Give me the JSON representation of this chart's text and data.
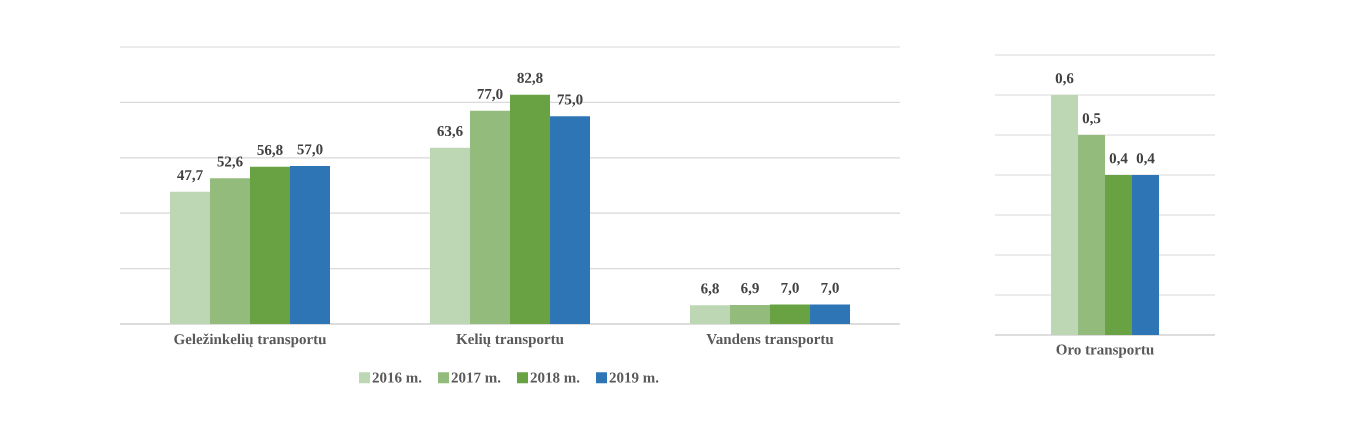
{
  "chart_data": [
    {
      "type": "bar",
      "categories": [
        "Geležinkelių transportu",
        "Kelių transportu",
        "Vandens transportu"
      ],
      "ylim": [
        0,
        100
      ],
      "yticks": [
        {
          "value": 0,
          "label": null
        },
        {
          "value": 20,
          "label": null
        },
        {
          "value": 40,
          "label": null
        },
        {
          "value": 60,
          "label": null
        },
        {
          "value": 80,
          "label": null
        },
        {
          "value": 100,
          "label": null
        }
      ],
      "grid": "y",
      "legend": "bottom",
      "tick_labels": "x",
      "series": [
        {
          "name": "2016 m.",
          "color": "#bdd7b4",
          "values": [
            47.7,
            63.6,
            6.8
          ],
          "value_labels": [
            "47,7",
            "63,6",
            "6,8"
          ]
        },
        {
          "name": "2017 m.",
          "color": "#92bb7c",
          "values": [
            52.6,
            77.0,
            6.9
          ],
          "value_labels": [
            "52,6",
            "77,0",
            "6,9"
          ]
        },
        {
          "name": "2018 m.",
          "color": "#68a242",
          "values": [
            56.8,
            82.8,
            7.0
          ],
          "value_labels": [
            "56,8",
            "82,8",
            "7,0"
          ]
        },
        {
          "name": "2019 m.",
          "color": "#2e75b6",
          "values": [
            57.0,
            75.0,
            7.0
          ],
          "value_labels": [
            "57,0",
            "75,0",
            "7,0"
          ]
        }
      ]
    },
    {
      "type": "bar",
      "categories": [
        "Oro transportu"
      ],
      "ylim": [
        0,
        0.7
      ],
      "yticks": [
        {
          "value": 0,
          "label": null
        },
        {
          "value": 0.1,
          "label": null
        },
        {
          "value": 0.2,
          "label": null
        },
        {
          "value": 0.3,
          "label": null
        },
        {
          "value": 0.4,
          "label": null
        },
        {
          "value": 0.5,
          "label": null
        },
        {
          "value": 0.6,
          "label": null
        },
        {
          "value": 0.7,
          "label": null
        }
      ],
      "grid": "y",
      "tick_labels": "x",
      "series": [
        {
          "color": "#bdd7b4",
          "values": [
            0.6
          ],
          "value_labels": [
            "0,6"
          ]
        },
        {
          "color": "#92bb7c",
          "values": [
            0.5
          ],
          "value_labels": [
            "0,5"
          ]
        },
        {
          "color": "#68a242",
          "values": [
            0.4
          ],
          "value_labels": [
            "0,4"
          ]
        },
        {
          "color": "#2e75b6",
          "values": [
            0.4
          ],
          "value_labels": [
            "0,4"
          ]
        }
      ]
    }
  ]
}
